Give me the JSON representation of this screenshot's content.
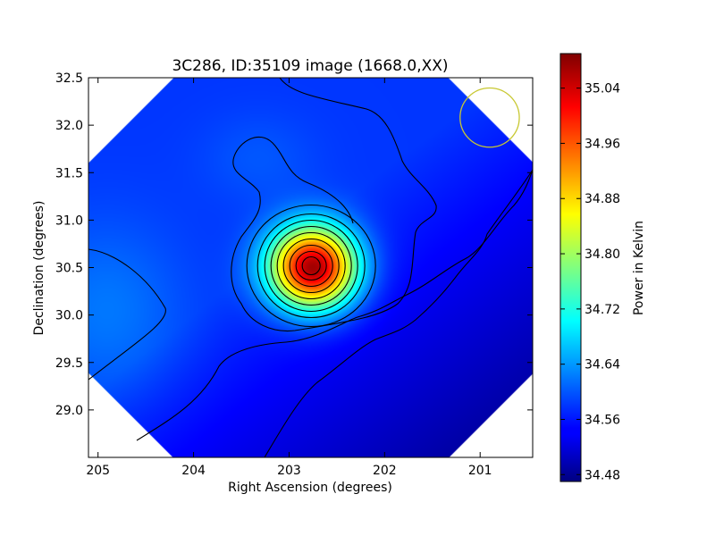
{
  "chart_data": {
    "type": "heatmap",
    "title": "3C286, ID:35109 image (1668.0,XX)",
    "xlabel": "Right Ascension (degrees)",
    "ylabel": "Declination (degrees)",
    "xlim": [
      205.1,
      200.45
    ],
    "ylim": [
      28.5,
      32.5
    ],
    "x_ticks": [
      205,
      204,
      203,
      202,
      201
    ],
    "x_tick_labels": [
      "205",
      "204",
      "203",
      "202",
      "201"
    ],
    "y_ticks": [
      29.0,
      29.5,
      30.0,
      30.5,
      31.0,
      31.5,
      32.0,
      32.5
    ],
    "y_tick_labels": [
      "29.0",
      "29.5",
      "30.0",
      "30.5",
      "31.0",
      "31.5",
      "32.0",
      "32.5"
    ],
    "colormap": "jet",
    "grid": false,
    "source": {
      "ra": 202.75,
      "dec": 30.5,
      "peak": 35.08
    },
    "background_level": 34.58,
    "beam_circle": {
      "ra": 200.9,
      "dec": 32.08,
      "radius_deg": 0.31,
      "color": "#c8c832"
    },
    "colorbar": {
      "label": "Power in Kelvin",
      "range": [
        34.47,
        35.09
      ],
      "ticks": [
        34.48,
        34.56,
        34.64,
        34.72,
        34.8,
        34.88,
        34.96,
        35.04
      ],
      "tick_labels": [
        "34.48",
        "34.56",
        "34.64",
        "34.72",
        "34.80",
        "34.88",
        "34.96",
        "35.04"
      ]
    }
  }
}
